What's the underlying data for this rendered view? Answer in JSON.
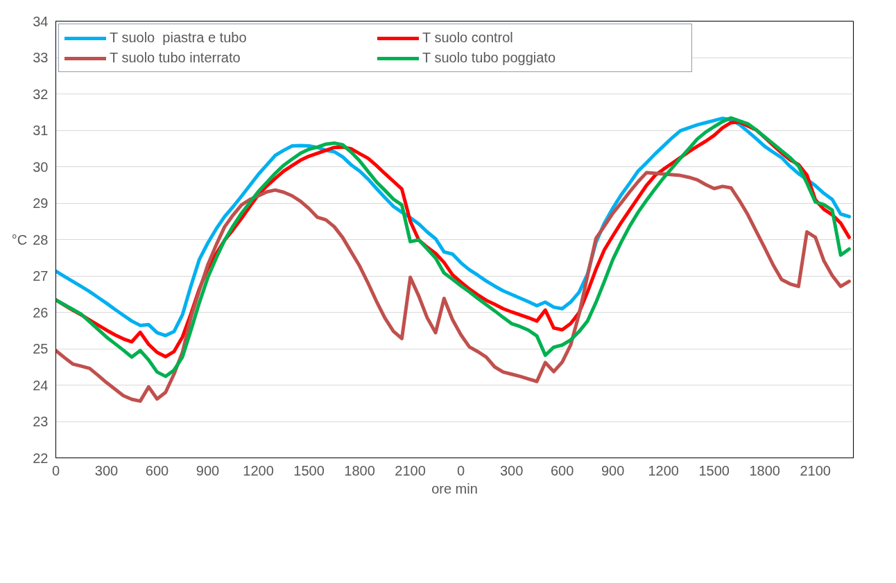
{
  "chart_data": {
    "type": "line",
    "xlabel": "ore min",
    "ylabel": "°C",
    "categories": [
      "0",
      null,
      null,
      null,
      null,
      null,
      "300",
      null,
      null,
      null,
      null,
      null,
      "600",
      null,
      null,
      null,
      null,
      null,
      "900",
      null,
      null,
      null,
      null,
      null,
      "1200",
      null,
      null,
      null,
      null,
      null,
      "1500",
      null,
      null,
      null,
      null,
      null,
      "1800",
      null,
      null,
      null,
      null,
      null,
      "2100",
      null,
      null,
      null,
      null,
      null,
      "0",
      null,
      null,
      null,
      null,
      null,
      "300",
      null,
      null,
      null,
      null,
      null,
      "600",
      null,
      null,
      null,
      null,
      null,
      "900",
      null,
      null,
      null,
      null,
      null,
      "1200",
      null,
      null,
      null,
      null,
      null,
      "1500",
      null,
      null,
      null,
      null,
      null,
      "1800",
      null,
      null,
      null,
      null,
      null,
      "2100",
      null,
      null,
      null,
      null
    ],
    "ylim": [
      22,
      34
    ],
    "yticks": [
      22,
      23,
      24,
      25,
      26,
      27,
      28,
      29,
      30,
      31,
      32,
      33,
      34
    ],
    "grid": "y",
    "legend": "top",
    "line_style": "solid",
    "series": [
      {
        "name": "T suolo  piastra e tubo",
        "color": "#00b0f0",
        "values": [
          27.13,
          26.99,
          26.85,
          26.71,
          26.57,
          26.41,
          26.25,
          26.08,
          25.92,
          25.76,
          25.64,
          25.66,
          25.44,
          25.36,
          25.47,
          25.93,
          26.72,
          27.45,
          27.9,
          28.29,
          28.63,
          28.9,
          29.19,
          29.49,
          29.79,
          30.05,
          30.31,
          30.45,
          30.57,
          30.58,
          30.57,
          30.53,
          30.45,
          30.41,
          30.27,
          30.05,
          29.88,
          29.66,
          29.4,
          29.15,
          28.91,
          28.75,
          28.6,
          28.43,
          28.21,
          28.02,
          27.66,
          27.6,
          27.36,
          27.17,
          27.02,
          26.86,
          26.72,
          26.59,
          26.49,
          26.39,
          26.29,
          26.18,
          26.28,
          26.14,
          26.1,
          26.28,
          26.55,
          27.05,
          27.92,
          28.45,
          28.86,
          29.23,
          29.55,
          29.88,
          30.11,
          30.35,
          30.57,
          30.79,
          30.99,
          31.07,
          31.15,
          31.21,
          31.27,
          31.33,
          31.29,
          31.16,
          30.97,
          30.77,
          30.56,
          30.4,
          30.25,
          30.01,
          29.81,
          29.65,
          29.48,
          29.27,
          29.1,
          28.7,
          28.63
        ]
      },
      {
        "name": "T suolo control",
        "color": "#ff0000",
        "values": [
          26.34,
          26.2,
          26.06,
          25.93,
          25.79,
          25.65,
          25.51,
          25.38,
          25.27,
          25.19,
          25.45,
          25.12,
          24.9,
          24.78,
          24.92,
          25.32,
          25.95,
          26.64,
          27.2,
          27.61,
          27.98,
          28.27,
          28.58,
          28.91,
          29.23,
          29.47,
          29.68,
          29.88,
          30.03,
          30.18,
          30.29,
          30.37,
          30.45,
          30.53,
          30.54,
          30.49,
          30.36,
          30.23,
          30.03,
          29.81,
          29.6,
          29.39,
          28.5,
          27.99,
          27.79,
          27.62,
          27.37,
          27.03,
          26.83,
          26.64,
          26.48,
          26.33,
          26.22,
          26.1,
          26.01,
          25.93,
          25.85,
          25.76,
          26.06,
          25.57,
          25.52,
          25.69,
          25.99,
          26.56,
          27.18,
          27.72,
          28.1,
          28.47,
          28.81,
          29.15,
          29.49,
          29.76,
          29.93,
          30.09,
          30.25,
          30.41,
          30.56,
          30.7,
          30.86,
          31.07,
          31.21,
          31.23,
          31.12,
          31.01,
          30.8,
          30.59,
          30.38,
          30.19,
          30.06,
          29.77,
          29.09,
          28.83,
          28.68,
          28.45,
          28.06
        ]
      },
      {
        "name": "T suolo tubo interrato",
        "color": "#c0504d",
        "values": [
          24.95,
          24.76,
          24.58,
          24.52,
          24.46,
          24.27,
          24.07,
          23.89,
          23.71,
          23.61,
          23.56,
          23.95,
          23.62,
          23.8,
          24.3,
          24.9,
          25.85,
          26.6,
          27.3,
          27.85,
          28.35,
          28.67,
          28.95,
          29.1,
          29.2,
          29.31,
          29.36,
          29.3,
          29.2,
          29.05,
          28.85,
          28.61,
          28.54,
          28.35,
          28.05,
          27.66,
          27.27,
          26.8,
          26.3,
          25.84,
          25.48,
          25.28,
          26.96,
          26.45,
          25.85,
          25.44,
          26.38,
          25.8,
          25.38,
          25.05,
          24.92,
          24.77,
          24.5,
          24.36,
          24.3,
          24.24,
          24.17,
          24.1,
          24.62,
          24.37,
          24.63,
          25.1,
          25.95,
          27.0,
          28.03,
          28.37,
          28.72,
          29.01,
          29.31,
          29.59,
          29.84,
          29.82,
          29.8,
          29.78,
          29.76,
          29.71,
          29.64,
          29.51,
          29.4,
          29.46,
          29.42,
          29.07,
          28.68,
          28.22,
          27.77,
          27.3,
          26.9,
          26.78,
          26.71,
          28.21,
          28.06,
          27.42,
          27.01,
          26.71,
          26.85
        ]
      },
      {
        "name": "T suolo tubo poggiato",
        "color": "#00b050",
        "values": [
          26.34,
          26.21,
          26.08,
          25.95,
          25.74,
          25.53,
          25.32,
          25.14,
          24.96,
          24.77,
          24.95,
          24.69,
          24.36,
          24.24,
          24.41,
          24.77,
          25.5,
          26.26,
          26.95,
          27.49,
          27.98,
          28.37,
          28.72,
          29.02,
          29.32,
          29.57,
          29.82,
          30.04,
          30.21,
          30.37,
          30.48,
          30.54,
          30.62,
          30.65,
          30.6,
          30.4,
          30.16,
          29.87,
          29.58,
          29.35,
          29.11,
          28.95,
          27.94,
          27.99,
          27.74,
          27.49,
          27.08,
          26.91,
          26.73,
          26.56,
          26.38,
          26.21,
          26.04,
          25.86,
          25.69,
          25.61,
          25.51,
          25.35,
          24.82,
          25.04,
          25.1,
          25.24,
          25.47,
          25.76,
          26.27,
          26.85,
          27.45,
          27.93,
          28.37,
          28.75,
          29.08,
          29.39,
          29.69,
          29.96,
          30.23,
          30.49,
          30.76,
          30.95,
          31.1,
          31.24,
          31.34,
          31.26,
          31.18,
          31.01,
          30.82,
          30.63,
          30.44,
          30.25,
          30.02,
          29.55,
          29.03,
          28.96,
          28.81,
          27.57,
          27.74
        ]
      }
    ]
  }
}
